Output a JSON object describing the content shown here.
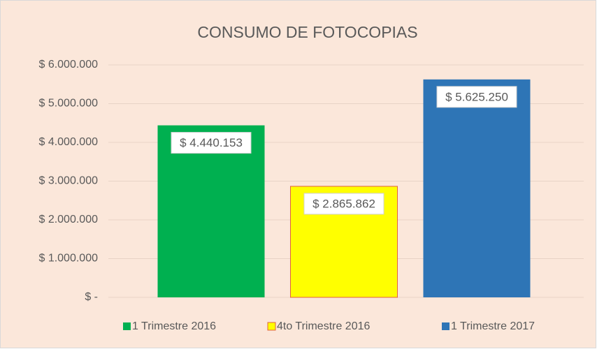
{
  "chart_data": {
    "type": "bar",
    "title": "CONSUMO  DE FOTOCOPIAS",
    "categories": [
      null
    ],
    "series": [
      {
        "name": "1 Trimestre 2016",
        "color": "#00b050",
        "values": [
          4440153
        ],
        "value_labels": [
          "$ 4.440.153"
        ]
      },
      {
        "name": "4to Trimestre 2016",
        "color": "#ffff00",
        "values": [
          2865862
        ],
        "value_labels": [
          "$ 2.865.862"
        ]
      },
      {
        "name": "1 Trimestre 2017",
        "color": "#2e75b6",
        "values": [
          5625250
        ],
        "value_labels": [
          "$ 5.625.250"
        ]
      }
    ],
    "ylim": [
      0,
      6000000
    ],
    "yticks": [
      {
        "value": 0,
        "label": "$ -"
      },
      {
        "value": 1000000,
        "label": "$ 1.000.000"
      },
      {
        "value": 2000000,
        "label": "$ 2.000.000"
      },
      {
        "value": 3000000,
        "label": "$ 3.000.000"
      },
      {
        "value": 4000000,
        "label": "$ 4.000.000"
      },
      {
        "value": 5000000,
        "label": "$ 5.000.000"
      },
      {
        "value": 6000000,
        "label": "$ 6.000.000"
      }
    ],
    "grid": true,
    "legend": "bottom"
  }
}
